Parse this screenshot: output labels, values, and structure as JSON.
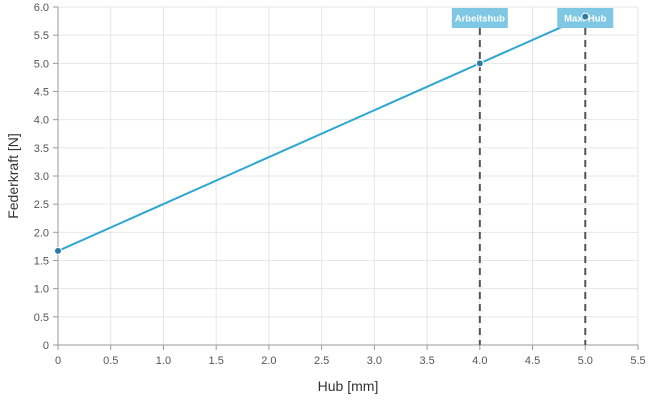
{
  "chart_data": {
    "type": "line",
    "title": "",
    "xlabel": "Hub [mm]",
    "ylabel": "Federkraft [N]",
    "xlim": [
      0,
      5.5
    ],
    "ylim": [
      0,
      6.0
    ],
    "x_ticks": [
      "0",
      "0.5",
      "1.0",
      "1.5",
      "2.0",
      "2.5",
      "3.0",
      "3.5",
      "4.0",
      "4.5",
      "5.0",
      "5.5"
    ],
    "y_ticks": [
      "0",
      "0.5",
      "1.0",
      "1.5",
      "2.0",
      "2.5",
      "3.0",
      "3.5",
      "4.0",
      "4.5",
      "5.0",
      "5.5",
      "6.0"
    ],
    "grid": true,
    "series": [
      {
        "color": "#2ea7d0",
        "points": [
          {
            "x": 0,
            "y": 1.67
          },
          {
            "x": 4.0,
            "y": 5.0
          },
          {
            "x": 5.0,
            "y": 5.83
          }
        ]
      }
    ],
    "markers": [
      {
        "label": "Arbeitshub",
        "x": 4.0
      },
      {
        "label": "Max. Hub",
        "x": 5.0
      }
    ],
    "colors": {
      "line": "#2ea7d0",
      "point_fill": "#2b7ea1",
      "marker_box": "#7ec8e3",
      "marker_line": "#555555",
      "grid": "#e6e6e6"
    }
  }
}
